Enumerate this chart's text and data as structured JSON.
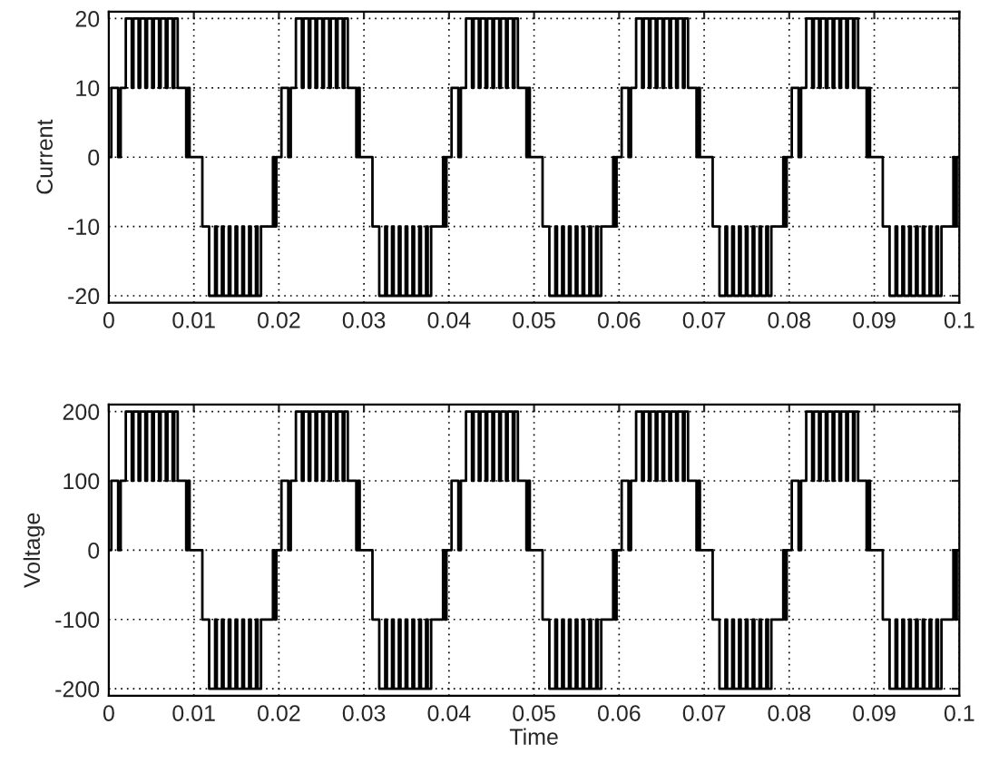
{
  "chart_data": [
    {
      "type": "step",
      "ylabel": "Current",
      "color": "#000000",
      "xlim": [
        0,
        0.1
      ],
      "ylim": [
        -21,
        21
      ],
      "xticks": [
        0,
        0.01,
        0.02,
        0.03,
        0.04,
        0.05,
        0.06,
        0.07,
        0.08,
        0.09,
        0.1
      ],
      "yticks": [
        -20,
        -10,
        0,
        10,
        20
      ],
      "grid": true,
      "x": [
        0,
        0.0003,
        0.0011,
        0.0014,
        0.002,
        0.0027,
        0.0029,
        0.0035,
        0.0037,
        0.0043,
        0.0045,
        0.0051,
        0.0053,
        0.0059,
        0.0061,
        0.0067,
        0.0069,
        0.0075,
        0.0077,
        0.0081,
        0.0091,
        0.0093,
        0.0095,
        0.011,
        0.0118,
        0.0125,
        0.0127,
        0.0133,
        0.0135,
        0.0141,
        0.0143,
        0.0149,
        0.0151,
        0.0157,
        0.0159,
        0.0165,
        0.0167,
        0.0173,
        0.0175,
        0.0179,
        0.0193,
        0.0195,
        0.0197,
        0.02,
        0.0203,
        0.0211,
        0.0214,
        0.022,
        0.0227,
        0.0229,
        0.0235,
        0.0237,
        0.0243,
        0.0245,
        0.0251,
        0.0253,
        0.0259,
        0.0261,
        0.0267,
        0.0269,
        0.0275,
        0.0277,
        0.0281,
        0.0291,
        0.0293,
        0.0295,
        0.031,
        0.0318,
        0.0325,
        0.0327,
        0.0333,
        0.0335,
        0.0341,
        0.0343,
        0.0349,
        0.0351,
        0.0357,
        0.0359,
        0.0365,
        0.0367,
        0.0373,
        0.0375,
        0.0379,
        0.0393,
        0.0395,
        0.0397,
        0.04,
        0.0403,
        0.0411,
        0.0414,
        0.042,
        0.0427,
        0.0429,
        0.0435,
        0.0437,
        0.0443,
        0.0445,
        0.0451,
        0.0453,
        0.0459,
        0.0461,
        0.0467,
        0.0469,
        0.0475,
        0.0477,
        0.0481,
        0.0491,
        0.0493,
        0.0495,
        0.051,
        0.0518,
        0.0525,
        0.0527,
        0.0533,
        0.0535,
        0.0541,
        0.0543,
        0.0549,
        0.0551,
        0.0557,
        0.0559,
        0.0565,
        0.0567,
        0.0573,
        0.0575,
        0.0579,
        0.0593,
        0.0595,
        0.0597,
        0.06,
        0.0603,
        0.0611,
        0.0614,
        0.062,
        0.0627,
        0.0629,
        0.0635,
        0.0637,
        0.0643,
        0.0645,
        0.0651,
        0.0653,
        0.0659,
        0.0661,
        0.0667,
        0.0669,
        0.0675,
        0.0677,
        0.0681,
        0.0691,
        0.0693,
        0.0695,
        0.071,
        0.0718,
        0.0725,
        0.0727,
        0.0733,
        0.0735,
        0.0741,
        0.0743,
        0.0749,
        0.0751,
        0.0757,
        0.0759,
        0.0765,
        0.0767,
        0.0773,
        0.0775,
        0.0779,
        0.0793,
        0.0795,
        0.0797,
        0.08,
        0.0803,
        0.0811,
        0.0814,
        0.082,
        0.0827,
        0.0829,
        0.0835,
        0.0837,
        0.0843,
        0.0845,
        0.0851,
        0.0853,
        0.0859,
        0.0861,
        0.0867,
        0.0869,
        0.0875,
        0.0877,
        0.0881,
        0.0891,
        0.0893,
        0.0895,
        0.091,
        0.0918,
        0.0925,
        0.0927,
        0.0933,
        0.0935,
        0.0941,
        0.0943,
        0.0949,
        0.0951,
        0.0957,
        0.0959,
        0.0965,
        0.0967,
        0.0973,
        0.0975,
        0.0979,
        0.0993,
        0.0995,
        0.0997,
        0.1
      ],
      "values": [
        0,
        10,
        0,
        10,
        20,
        10,
        20,
        10,
        20,
        10,
        20,
        10,
        20,
        10,
        20,
        10,
        20,
        10,
        20,
        10,
        0,
        10,
        0,
        -10,
        -20,
        -10,
        -20,
        -10,
        -20,
        -10,
        -20,
        -10,
        -20,
        -10,
        -20,
        -10,
        -20,
        -10,
        -20,
        -10,
        0,
        -10,
        0,
        0,
        10,
        0,
        10,
        20,
        10,
        20,
        10,
        20,
        10,
        20,
        10,
        20,
        10,
        20,
        10,
        20,
        10,
        20,
        10,
        0,
        10,
        0,
        -10,
        -20,
        -10,
        -20,
        -10,
        -20,
        -10,
        -20,
        -10,
        -20,
        -10,
        -20,
        -10,
        -20,
        -10,
        -20,
        -10,
        0,
        -10,
        0,
        0,
        10,
        0,
        10,
        20,
        10,
        20,
        10,
        20,
        10,
        20,
        10,
        20,
        10,
        20,
        10,
        20,
        10,
        20,
        10,
        0,
        10,
        0,
        -10,
        -20,
        -10,
        -20,
        -10,
        -20,
        -10,
        -20,
        -10,
        -20,
        -10,
        -20,
        -10,
        -20,
        -10,
        -20,
        -10,
        0,
        -10,
        0,
        0,
        10,
        0,
        10,
        20,
        10,
        20,
        10,
        20,
        10,
        20,
        10,
        20,
        10,
        20,
        10,
        20,
        10,
        20,
        10,
        0,
        10,
        0,
        -10,
        -20,
        -10,
        -20,
        -10,
        -20,
        -10,
        -20,
        -10,
        -20,
        -10,
        -20,
        -10,
        -20,
        -10,
        -20,
        -10,
        0,
        -10,
        0,
        0,
        10,
        0,
        10,
        20,
        10,
        20,
        10,
        20,
        10,
        20,
        10,
        20,
        10,
        20,
        10,
        20,
        10,
        20,
        10,
        0,
        10,
        0,
        -10,
        -20,
        -10,
        -20,
        -10,
        -20,
        -10,
        -20,
        -10,
        -20,
        -10,
        -20,
        -10,
        -20,
        -10,
        -20,
        -10,
        0,
        -10,
        0,
        0
      ]
    },
    {
      "type": "step",
      "ylabel": "Voltage",
      "xlabel": "Time",
      "color": "#000000",
      "xlim": [
        0,
        0.1
      ],
      "ylim": [
        -210,
        210
      ],
      "xticks": [
        0,
        0.01,
        0.02,
        0.03,
        0.04,
        0.05,
        0.06,
        0.07,
        0.08,
        0.09,
        0.1
      ],
      "yticks": [
        -200,
        -100,
        0,
        100,
        200
      ],
      "grid": true,
      "x": [
        0,
        0.0003,
        0.0011,
        0.0014,
        0.002,
        0.0027,
        0.0029,
        0.0035,
        0.0037,
        0.0043,
        0.0045,
        0.0051,
        0.0053,
        0.0059,
        0.0061,
        0.0067,
        0.0069,
        0.0075,
        0.0077,
        0.0081,
        0.0091,
        0.0093,
        0.0095,
        0.011,
        0.0118,
        0.0125,
        0.0127,
        0.0133,
        0.0135,
        0.0141,
        0.0143,
        0.0149,
        0.0151,
        0.0157,
        0.0159,
        0.0165,
        0.0167,
        0.0173,
        0.0175,
        0.0179,
        0.0193,
        0.0195,
        0.0197,
        0.02,
        0.0203,
        0.0211,
        0.0214,
        0.022,
        0.0227,
        0.0229,
        0.0235,
        0.0237,
        0.0243,
        0.0245,
        0.0251,
        0.0253,
        0.0259,
        0.0261,
        0.0267,
        0.0269,
        0.0275,
        0.0277,
        0.0281,
        0.0291,
        0.0293,
        0.0295,
        0.031,
        0.0318,
        0.0325,
        0.0327,
        0.0333,
        0.0335,
        0.0341,
        0.0343,
        0.0349,
        0.0351,
        0.0357,
        0.0359,
        0.0365,
        0.0367,
        0.0373,
        0.0375,
        0.0379,
        0.0393,
        0.0395,
        0.0397,
        0.04,
        0.0403,
        0.0411,
        0.0414,
        0.042,
        0.0427,
        0.0429,
        0.0435,
        0.0437,
        0.0443,
        0.0445,
        0.0451,
        0.0453,
        0.0459,
        0.0461,
        0.0467,
        0.0469,
        0.0475,
        0.0477,
        0.0481,
        0.0491,
        0.0493,
        0.0495,
        0.051,
        0.0518,
        0.0525,
        0.0527,
        0.0533,
        0.0535,
        0.0541,
        0.0543,
        0.0549,
        0.0551,
        0.0557,
        0.0559,
        0.0565,
        0.0567,
        0.0573,
        0.0575,
        0.0579,
        0.0593,
        0.0595,
        0.0597,
        0.06,
        0.0603,
        0.0611,
        0.0614,
        0.062,
        0.0627,
        0.0629,
        0.0635,
        0.0637,
        0.0643,
        0.0645,
        0.0651,
        0.0653,
        0.0659,
        0.0661,
        0.0667,
        0.0669,
        0.0675,
        0.0677,
        0.0681,
        0.0691,
        0.0693,
        0.0695,
        0.071,
        0.0718,
        0.0725,
        0.0727,
        0.0733,
        0.0735,
        0.0741,
        0.0743,
        0.0749,
        0.0751,
        0.0757,
        0.0759,
        0.0765,
        0.0767,
        0.0773,
        0.0775,
        0.0779,
        0.0793,
        0.0795,
        0.0797,
        0.08,
        0.0803,
        0.0811,
        0.0814,
        0.082,
        0.0827,
        0.0829,
        0.0835,
        0.0837,
        0.0843,
        0.0845,
        0.0851,
        0.0853,
        0.0859,
        0.0861,
        0.0867,
        0.0869,
        0.0875,
        0.0877,
        0.0881,
        0.0891,
        0.0893,
        0.0895,
        0.091,
        0.0918,
        0.0925,
        0.0927,
        0.0933,
        0.0935,
        0.0941,
        0.0943,
        0.0949,
        0.0951,
        0.0957,
        0.0959,
        0.0965,
        0.0967,
        0.0973,
        0.0975,
        0.0979,
        0.0993,
        0.0995,
        0.0997,
        0.1
      ],
      "values": [
        0,
        100,
        0,
        100,
        200,
        100,
        200,
        100,
        200,
        100,
        200,
        100,
        200,
        100,
        200,
        100,
        200,
        100,
        200,
        100,
        0,
        100,
        0,
        -100,
        -200,
        -100,
        -200,
        -100,
        -200,
        -100,
        -200,
        -100,
        -200,
        -100,
        -200,
        -100,
        -200,
        -100,
        -200,
        -100,
        0,
        -100,
        0,
        0,
        100,
        0,
        100,
        200,
        100,
        200,
        100,
        200,
        100,
        200,
        100,
        200,
        100,
        200,
        100,
        200,
        100,
        200,
        100,
        0,
        100,
        0,
        -100,
        -200,
        -100,
        -200,
        -100,
        -200,
        -100,
        -200,
        -100,
        -200,
        -100,
        -200,
        -100,
        -200,
        -100,
        -200,
        -100,
        0,
        -100,
        0,
        0,
        100,
        0,
        100,
        200,
        100,
        200,
        100,
        200,
        100,
        200,
        100,
        200,
        100,
        200,
        100,
        200,
        100,
        200,
        100,
        0,
        100,
        0,
        -100,
        -200,
        -100,
        -200,
        -100,
        -200,
        -100,
        -200,
        -100,
        -200,
        -100,
        -200,
        -100,
        -200,
        -100,
        -200,
        -100,
        0,
        -100,
        0,
        0,
        100,
        0,
        100,
        200,
        100,
        200,
        100,
        200,
        100,
        200,
        100,
        200,
        100,
        200,
        100,
        200,
        100,
        200,
        100,
        0,
        100,
        0,
        -100,
        -200,
        -100,
        -200,
        -100,
        -200,
        -100,
        -200,
        -100,
        -200,
        -100,
        -200,
        -100,
        -200,
        -100,
        -200,
        -100,
        0,
        -100,
        0,
        0,
        100,
        0,
        100,
        200,
        100,
        200,
        100,
        200,
        100,
        200,
        100,
        200,
        100,
        200,
        100,
        200,
        100,
        200,
        100,
        0,
        100,
        0,
        -100,
        -200,
        -100,
        -200,
        -100,
        -200,
        -100,
        -200,
        -100,
        -200,
        -100,
        -200,
        -100,
        -200,
        -100,
        -200,
        -100,
        0,
        -100,
        0,
        0
      ]
    }
  ]
}
